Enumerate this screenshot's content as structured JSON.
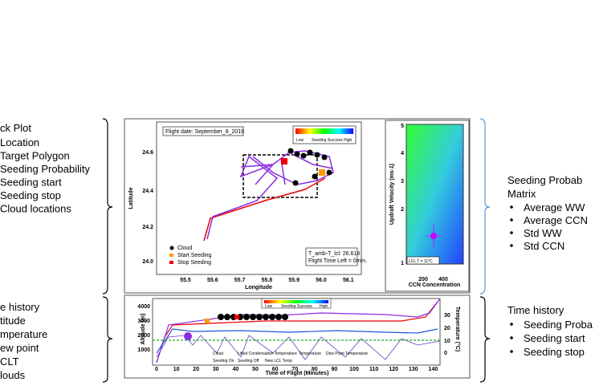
{
  "left_track": {
    "title": "ck Plot",
    "items": [
      "Location",
      "Target Polygon",
      "Seeding Probability",
      "Seeding start",
      "Seeding stop",
      "Cloud locations"
    ]
  },
  "left_time": {
    "title": "e history",
    "items": [
      "titude",
      "mperature",
      "ew point",
      "CLT",
      "louds"
    ]
  },
  "track_plot": {
    "flight_date": "Flight date: September_8_2019",
    "colorbar": {
      "low": "Low",
      "mid": "Seeding Success",
      "high": "High"
    },
    "xlabel": "Longitude",
    "ylabel": "Latitude",
    "xticks": [
      "55.5",
      "55.6",
      "55.7",
      "55.8",
      "55.9",
      "56.0",
      "56.1"
    ],
    "yticks": [
      "24.6",
      "24.4",
      "24.2",
      "24.0"
    ],
    "legend": [
      "Cloud",
      "Start Seeding",
      "Stop Seeding"
    ],
    "info": [
      "T_amb-T_lcl: 26.618",
      "Flight Time Left = 0min."
    ]
  },
  "matrix_plot": {
    "xlabel": "CCN Concentration",
    "ylabel": "Updraft Velocity (ms-1)",
    "xticks": [
      "200",
      "400"
    ],
    "yticks": [
      "5",
      "4",
      "3",
      "2",
      "1"
    ],
    "note": "LCL T = 11°C"
  },
  "right_matrix": {
    "title": "Seeding Probab",
    "title2": "Matrix",
    "items": [
      "Average WW",
      "Average CCN",
      "Std WW",
      "Std CCN"
    ]
  },
  "time_plot": {
    "xlabel": "Time of Flight (Minutes)",
    "ylabel": "Altitude (m)",
    "y2label": "Temperature (°C)",
    "xticks": [
      "0",
      "10",
      "20",
      "30",
      "40",
      "50",
      "60",
      "70",
      "80",
      "90",
      "100",
      "110",
      "120",
      "130",
      "140"
    ],
    "yticks": [
      "4000",
      "3000",
      "2000",
      "1000"
    ],
    "y2ticks": [
      "30",
      "20",
      "10",
      "0"
    ],
    "colorbar": {
      "low": "Low",
      "mid": "Seeding Success",
      "high": "High"
    },
    "legend": [
      "Cloud",
      "Lifted Condensation Temperature",
      "Temperature",
      "Dew Point Temperature",
      "Seeding On",
      "Seeding Off",
      "New LCL Temp"
    ]
  },
  "right_time": {
    "title": "Time history",
    "items": [
      "Seeding Proba",
      "Seeding start",
      "Seeding stop"
    ]
  }
}
